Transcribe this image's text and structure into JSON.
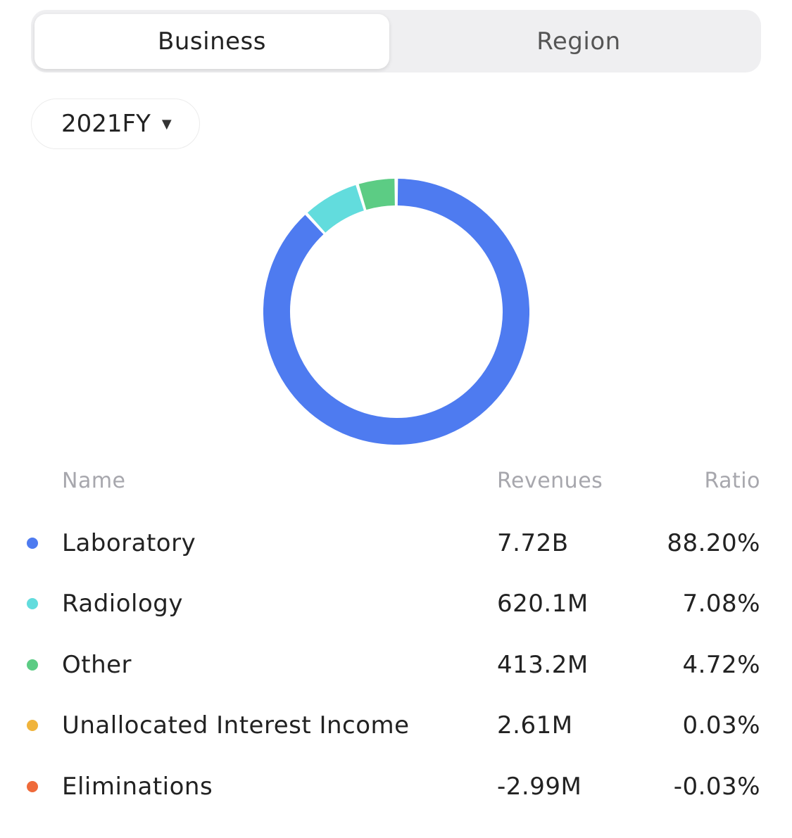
{
  "tabs": {
    "business_label": "Business",
    "region_label": "Region"
  },
  "period": {
    "selected": "2021FY"
  },
  "table": {
    "headers": {
      "name": "Name",
      "revenues": "Revenues",
      "ratio": "Ratio"
    },
    "rows": [
      {
        "name": "Laboratory",
        "revenues": "7.72B",
        "ratio": "88.20%",
        "color": "#4e7bf0"
      },
      {
        "name": "Radiology",
        "revenues": "620.1M",
        "ratio": "7.08%",
        "color": "#62dcdd"
      },
      {
        "name": "Other",
        "revenues": "413.2M",
        "ratio": "4.72%",
        "color": "#5ccc84"
      },
      {
        "name": "Unallocated Interest Income",
        "revenues": "2.61M",
        "ratio": "0.03%",
        "color": "#f0b43c"
      },
      {
        "name": "Eliminations",
        "revenues": "-2.99M",
        "ratio": "-0.03%",
        "color": "#ef6a3a"
      }
    ]
  },
  "chart_data": {
    "type": "pie",
    "categories": [
      "Laboratory",
      "Radiology",
      "Other",
      "Unallocated Interest Income",
      "Eliminations"
    ],
    "values": [
      88.2,
      7.08,
      4.72,
      0.03,
      -0.03
    ],
    "colors": [
      "#4e7bf0",
      "#62dcdd",
      "#5ccc84",
      "#f0b43c",
      "#ef6a3a"
    ]
  }
}
